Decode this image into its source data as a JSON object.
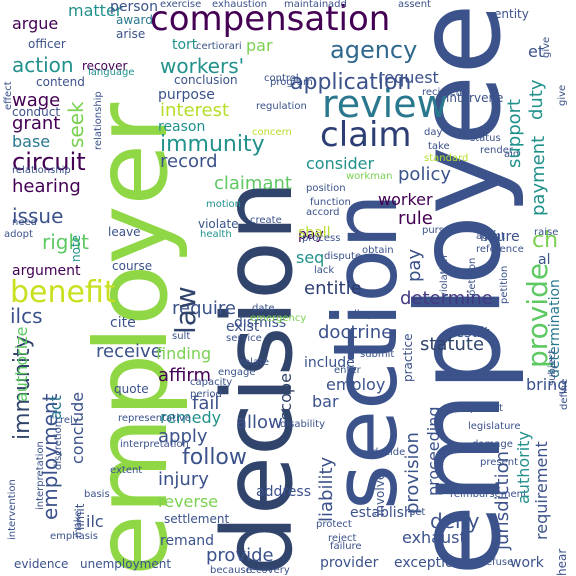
{
  "background": "#ffffff",
  "palette": {
    "dark_purple": "#440154",
    "indigo": "#3b528b",
    "teal": "#21918c",
    "green": "#5ec962",
    "yellow": "#c8e020"
  },
  "words": [
    {
      "text": "employee",
      "color": "#3b528b"
    },
    {
      "text": "employer",
      "color": "#8fd744"
    },
    {
      "text": "decision",
      "color": "#31446b"
    },
    {
      "text": "section",
      "color": "#3b528b"
    },
    {
      "text": "compensation",
      "color": "#440154"
    },
    {
      "text": "review",
      "color": "#2a788e"
    },
    {
      "text": "agency",
      "color": "#31688e"
    },
    {
      "text": "claim",
      "color": "#2c3e73"
    },
    {
      "text": "benefit",
      "color": "#c8e020"
    },
    {
      "text": "circuit",
      "color": "#31446b"
    },
    {
      "text": "law",
      "color": "#440154"
    },
    {
      "text": "provide",
      "color": "#5ec962"
    },
    {
      "text": "immunity",
      "color": "#31446b"
    },
    {
      "text": "application",
      "color": "#3b528b"
    },
    {
      "text": "action",
      "color": "#21918c"
    },
    {
      "text": "issue",
      "color": "#3b528b"
    },
    {
      "text": "right",
      "color": "#21918c"
    },
    {
      "text": "file",
      "color": "#3b528b"
    },
    {
      "text": "party",
      "color": "#5ec962"
    },
    {
      "text": "workers'",
      "color": "#21918c"
    },
    {
      "text": "employment",
      "color": "#3b528b"
    },
    {
      "text": "claimant",
      "color": "#5ec962"
    },
    {
      "text": "ilcs",
      "color": "#3b528b"
    },
    {
      "text": "seek",
      "color": "#7ad151"
    },
    {
      "text": "record",
      "color": "#3b528b"
    },
    {
      "text": "interest",
      "color": "#b5de2b"
    },
    {
      "text": "hearing",
      "color": "#440154"
    },
    {
      "text": "grant",
      "color": "#440154"
    },
    {
      "text": "wage",
      "color": "#440154"
    },
    {
      "text": "base",
      "color": "#2a788e"
    },
    {
      "text": "argue",
      "color": "#440154"
    },
    {
      "text": "matter",
      "color": "#21918c"
    },
    {
      "text": "determine",
      "color": "#443a83"
    },
    {
      "text": "require",
      "color": "#3b528b"
    },
    {
      "text": "entitle",
      "color": "#2c3e73"
    },
    {
      "text": "doctrine",
      "color": "#3b528b"
    },
    {
      "text": "statute",
      "color": "#31446b"
    },
    {
      "text": "receive",
      "color": "#3b528b"
    },
    {
      "text": "finding",
      "color": "#7ad151"
    },
    {
      "text": "affirm",
      "color": "#440154"
    },
    {
      "text": "fail",
      "color": "#3b528b"
    },
    {
      "text": "allow",
      "color": "#3b528b"
    },
    {
      "text": "remedy",
      "color": "#21918c"
    },
    {
      "text": "apply",
      "color": "#3b528b"
    },
    {
      "text": "follow",
      "color": "#3b528b"
    },
    {
      "text": "injury",
      "color": "#3b528b"
    },
    {
      "text": "reverse",
      "color": "#7ad151"
    },
    {
      "text": "deny",
      "color": "#3b528b"
    },
    {
      "text": "jurisdiction",
      "color": "#3b528b"
    },
    {
      "text": "provision",
      "color": "#3b528b"
    },
    {
      "text": "liability",
      "color": "#3b528b"
    },
    {
      "text": "worker",
      "color": "#440154"
    },
    {
      "text": "rule",
      "color": "#440154"
    },
    {
      "text": "policy",
      "color": "#3b528b"
    },
    {
      "text": "consider",
      "color": "#21918c"
    },
    {
      "text": "request",
      "color": "#3b528b"
    },
    {
      "text": "support",
      "color": "#21918c"
    },
    {
      "text": "payment",
      "color": "#21918c"
    },
    {
      "text": "duty",
      "color": "#21918c"
    },
    {
      "text": "et",
      "color": "#3b528b"
    },
    {
      "text": "ch",
      "color": "#7ad151"
    },
    {
      "text": "al",
      "color": "#3b528b"
    },
    {
      "text": "determination",
      "color": "#2a788e"
    },
    {
      "text": "pay",
      "color": "#3b528b"
    },
    {
      "text": "seq",
      "color": "#440154"
    },
    {
      "text": "shall",
      "color": "#21918c"
    },
    {
      "text": "par",
      "color": "#b5de2b"
    },
    {
      "text": "tort",
      "color": "#7ad151"
    },
    {
      "text": "purpose",
      "color": "#21918c"
    },
    {
      "text": "reason",
      "color": "#3b528b"
    },
    {
      "text": "conclusion",
      "color": "#21918c"
    },
    {
      "text": "award",
      "color": "#3b528b"
    },
    {
      "text": "person",
      "color": "#2a788e"
    },
    {
      "text": "arise",
      "color": "#3b528b"
    },
    {
      "text": "recover",
      "color": "#3b528b"
    },
    {
      "text": "contend",
      "color": "#440154"
    },
    {
      "text": "conduct",
      "color": "#3b528b"
    },
    {
      "text": "officer",
      "color": "#3b528b"
    },
    {
      "text": "language",
      "color": "#3b528b"
    },
    {
      "text": "authorize",
      "color": "#21918c"
    },
    {
      "text": "act",
      "color": "#5ec962"
    },
    {
      "text": "conclude",
      "color": "#2a788e"
    },
    {
      "text": "procedure",
      "color": "#3b528b"
    },
    {
      "text": "argument",
      "color": "#440154"
    },
    {
      "text": "ilc",
      "color": "#3b528b"
    },
    {
      "text": "evidence",
      "color": "#3b528b"
    },
    {
      "text": "unemployment",
      "color": "#3b528b"
    },
    {
      "text": "remand",
      "color": "#3b528b"
    },
    {
      "text": "settlement",
      "color": "#3b528b"
    },
    {
      "text": "address",
      "color": "#3b528b"
    },
    {
      "text": "employ",
      "color": "#3b528b"
    },
    {
      "text": "bar",
      "color": "#3b528b"
    },
    {
      "text": "scope",
      "color": "#31446b"
    },
    {
      "text": "include",
      "color": "#3b528b"
    },
    {
      "text": "proceeding",
      "color": "#3b528b"
    },
    {
      "text": "bring",
      "color": "#3b528b"
    },
    {
      "text": "authority",
      "color": "#21918c"
    },
    {
      "text": "requirement",
      "color": "#3b528b"
    },
    {
      "text": "result",
      "color": "#3b528b"
    },
    {
      "text": "establish",
      "color": "#3b528b"
    },
    {
      "text": "exhaust",
      "color": "#3b528b"
    },
    {
      "text": "exception",
      "color": "#3b528b"
    },
    {
      "text": "provider",
      "color": "#3b528b"
    },
    {
      "text": "work",
      "color": "#3b528b"
    },
    {
      "text": "note",
      "color": "#21918c"
    },
    {
      "text": "leave",
      "color": "#3b528b"
    },
    {
      "text": "course",
      "color": "#3b528b"
    },
    {
      "text": "cite",
      "color": "#3b528b"
    },
    {
      "text": "limit",
      "color": "#3b528b"
    },
    {
      "text": "exist",
      "color": "#3b528b"
    },
    {
      "text": "dismiss",
      "color": "#3b528b"
    },
    {
      "text": "injure",
      "color": "#3b528b"
    },
    {
      "text": "intervene",
      "color": "#3b528b"
    },
    {
      "text": "entity",
      "color": "#3b528b"
    },
    {
      "text": "exhaustion",
      "color": "#3b528b"
    },
    {
      "text": "maintain",
      "color": "#3b528b"
    },
    {
      "text": "add",
      "color": "#3b528b"
    },
    {
      "text": "exercise",
      "color": "#3b528b"
    },
    {
      "text": "assent",
      "color": "#3b528b"
    },
    {
      "text": "give",
      "color": "#3b528b"
    },
    {
      "text": "effect",
      "color": "#3b528b"
    },
    {
      "text": "relationship",
      "color": "#3b528b"
    },
    {
      "text": "need",
      "color": "#3b528b"
    },
    {
      "text": "adopt",
      "color": "#3b528b"
    },
    {
      "text": "discharge",
      "color": "#3b528b"
    },
    {
      "text": "individual",
      "color": "#3b528b"
    },
    {
      "text": "quote",
      "color": "#3b528b"
    },
    {
      "text": "violate",
      "color": "#3b528b"
    },
    {
      "text": "create",
      "color": "#3b528b"
    },
    {
      "text": "health",
      "color": "#21918c"
    },
    {
      "text": "motion",
      "color": "#21918c"
    },
    {
      "text": "regulation",
      "color": "#3b528b"
    },
    {
      "text": "control",
      "color": "#3b528b"
    },
    {
      "text": "process",
      "color": "#3b528b"
    },
    {
      "text": "lack",
      "color": "#3b528b"
    },
    {
      "text": "dispute",
      "color": "#3b528b"
    },
    {
      "text": "allege",
      "color": "#3b528b"
    },
    {
      "text": "practice",
      "color": "#3b528b"
    },
    {
      "text": "submit",
      "color": "#3b528b"
    },
    {
      "text": "enter",
      "color": "#3b528b"
    },
    {
      "text": "decide",
      "color": "#3b528b"
    },
    {
      "text": "involve",
      "color": "#3b528b"
    },
    {
      "text": "set",
      "color": "#3b528b"
    },
    {
      "text": "permit",
      "color": "#3b528b"
    },
    {
      "text": "present",
      "color": "#3b528b"
    },
    {
      "text": "damage",
      "color": "#3b528b"
    },
    {
      "text": "reimbursement",
      "color": "#3b528b"
    },
    {
      "text": "subject",
      "color": "#3b528b"
    },
    {
      "text": "define",
      "color": "#3b528b"
    },
    {
      "text": "legislature",
      "color": "#3b528b"
    },
    {
      "text": "refuse",
      "color": "#3b528b"
    },
    {
      "text": "sult",
      "color": "#3b528b"
    },
    {
      "text": "service",
      "color": "#3b528b"
    },
    {
      "text": "emergency",
      "color": "#7ad151"
    },
    {
      "text": "date",
      "color": "#3b528b"
    },
    {
      "text": "rely",
      "color": "#3b528b"
    },
    {
      "text": "capacity",
      "color": "#3b528b"
    },
    {
      "text": "disability",
      "color": "#3b528b"
    },
    {
      "text": "period",
      "color": "#3b528b"
    },
    {
      "text": "representative",
      "color": "#3b528b"
    },
    {
      "text": "discretion",
      "color": "#3b528b"
    },
    {
      "text": "interpretation",
      "color": "#3b528b"
    },
    {
      "text": "extent",
      "color": "#3b528b"
    },
    {
      "text": "basis",
      "color": "#3b528b"
    },
    {
      "text": "intervention",
      "color": "#3b528b"
    },
    {
      "text": "emphasis",
      "color": "#3b528b"
    },
    {
      "text": "make",
      "color": "#3b528b"
    },
    {
      "text": "reject",
      "color": "#3b528b"
    },
    {
      "text": "failure",
      "color": "#3b528b"
    },
    {
      "text": "protect",
      "color": "#3b528b"
    },
    {
      "text": "recovery",
      "color": "#3b528b"
    },
    {
      "text": "reference",
      "color": "#3b528b"
    },
    {
      "text": "agent",
      "color": "#3b528b"
    },
    {
      "text": "pursue",
      "color": "#3b528b"
    },
    {
      "text": "obtain",
      "color": "#3b528b"
    },
    {
      "text": "function",
      "color": "#3b528b"
    },
    {
      "text": "accord",
      "color": "#3b528b"
    },
    {
      "text": "position",
      "color": "#3b528b"
    },
    {
      "text": "workman",
      "color": "#3b528b"
    },
    {
      "text": "standard",
      "color": "#7ad151"
    },
    {
      "text": "take",
      "color": "#b5de2b"
    },
    {
      "text": "day",
      "color": "#3b528b"
    },
    {
      "text": "status",
      "color": "#3b528b"
    },
    {
      "text": "render",
      "color": "#3b528b"
    },
    {
      "text": "aid",
      "color": "#3b528b"
    },
    {
      "text": "recipient",
      "color": "#3b528b"
    },
    {
      "text": "program",
      "color": "#3b528b"
    },
    {
      "text": "certiorari",
      "color": "#3b528b"
    },
    {
      "text": "concern",
      "color": "#3b528b"
    },
    {
      "text": "violation",
      "color": "#b5de2b"
    },
    {
      "text": "petition",
      "color": "#3b528b"
    },
    {
      "text": "raise",
      "color": "#3b528b"
    },
    {
      "text": "relate",
      "color": "#3b528b"
    },
    {
      "text": "engage",
      "color": "#3b528b"
    },
    {
      "text": "hear",
      "color": "#3b528b"
    },
    {
      "text": "because",
      "color": "#3b528b"
    },
    {
      "text": "applicant",
      "color": "#3b528b"
    },
    {
      "text": "move",
      "color": "#3b528b"
    }
  ]
}
